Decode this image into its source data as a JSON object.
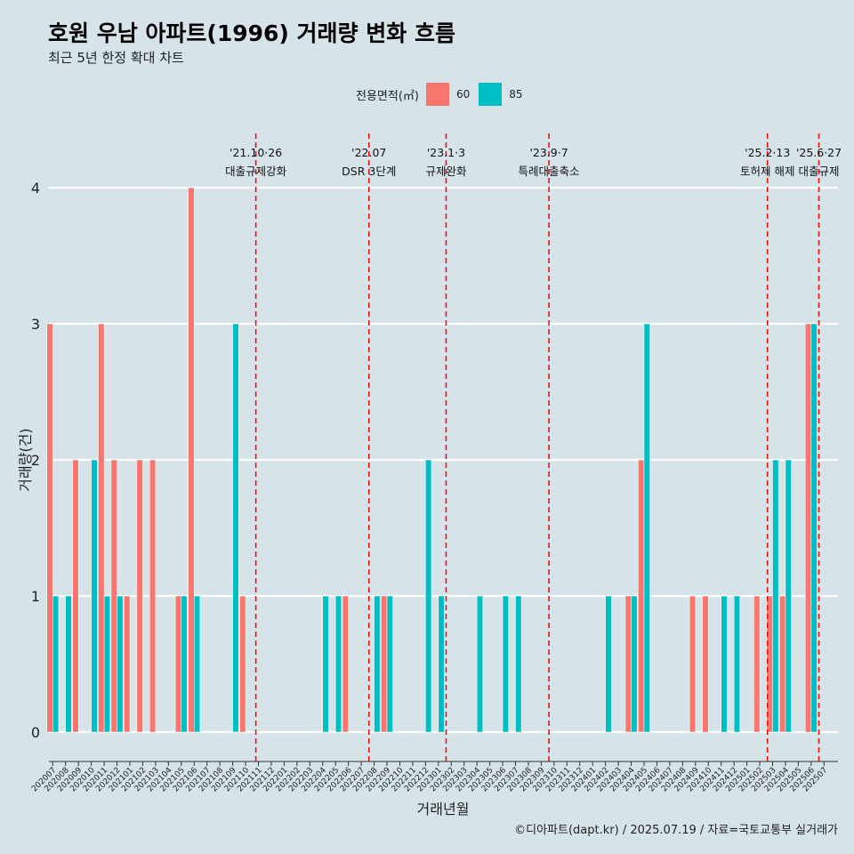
{
  "title": "호원 우남 아파트(1996) 거래량 변화 흐름",
  "subtitle": "최근 5년 한정 확대 차트",
  "caption": "©디아파트(dapt.kr) / 2025.07.19 / 자료=국토교통부 실거래가",
  "legend": {
    "title": "전용면적(㎡)",
    "items": [
      {
        "label": "60",
        "color": "#f8766d"
      },
      {
        "label": "85",
        "color": "#00bfc4"
      }
    ]
  },
  "chart_data": {
    "type": "bar",
    "xlabel": "거래년월",
    "ylabel": "거래량(건)",
    "ylim": [
      0,
      4
    ],
    "yticks": [
      0,
      1,
      2,
      3,
      4
    ],
    "grid": true,
    "legend_position": "top",
    "categories": [
      "202007",
      "202008",
      "202009",
      "202010",
      "202011",
      "202012",
      "202101",
      "202102",
      "202103",
      "202104",
      "202105",
      "202106",
      "202107",
      "202108",
      "202109",
      "202110",
      "202111",
      "202112",
      "202201",
      "202202",
      "202203",
      "202204",
      "202205",
      "202206",
      "202207",
      "202208",
      "202209",
      "202210",
      "202211",
      "202212",
      "202301",
      "202302",
      "202303",
      "202304",
      "202305",
      "202306",
      "202307",
      "202308",
      "202309",
      "202310",
      "202311",
      "202312",
      "202401",
      "202402",
      "202403",
      "202404",
      "202405",
      "202406",
      "202407",
      "202408",
      "202409",
      "202410",
      "202411",
      "202412",
      "202501",
      "202502",
      "202503",
      "202504",
      "202505",
      "202506",
      "202507"
    ],
    "series": [
      {
        "name": "60",
        "color": "#f8766d",
        "values": [
          3,
          0,
          2,
          0,
          3,
          2,
          1,
          2,
          2,
          0,
          1,
          4,
          0,
          0,
          0,
          1,
          0,
          0,
          0,
          0,
          0,
          0,
          0,
          1,
          0,
          0,
          1,
          0,
          0,
          0,
          0,
          0,
          0,
          0,
          0,
          0,
          0,
          0,
          0,
          0,
          0,
          0,
          0,
          0,
          0,
          1,
          2,
          0,
          0,
          0,
          1,
          1,
          0,
          0,
          0,
          1,
          1,
          1,
          0,
          3,
          0
        ]
      },
      {
        "name": "85",
        "color": "#00bfc4",
        "values": [
          1,
          1,
          0,
          2,
          1,
          1,
          0,
          0,
          0,
          0,
          1,
          1,
          0,
          0,
          3,
          0,
          0,
          0,
          0,
          0,
          0,
          1,
          1,
          0,
          0,
          1,
          1,
          0,
          0,
          2,
          1,
          0,
          0,
          1,
          0,
          1,
          1,
          0,
          0,
          0,
          0,
          0,
          0,
          1,
          0,
          1,
          3,
          0,
          0,
          0,
          0,
          0,
          1,
          1,
          0,
          0,
          2,
          2,
          0,
          3,
          0
        ]
      }
    ],
    "events": [
      {
        "date_label": "'21.10·26",
        "text": "대출규제강화",
        "month_index": 15.8
      },
      {
        "date_label": "'22.07",
        "text": "DSR 3단계",
        "month_index": 24.6
      },
      {
        "date_label": "'23.1·3",
        "text": "규제완화",
        "month_index": 30.6
      },
      {
        "date_label": "'23.9·7",
        "text": "특례대출축소",
        "month_index": 38.6
      },
      {
        "date_label": "'25.2·13",
        "text": "토허제 해제",
        "month_index": 55.6
      },
      {
        "date_label": "'25.6·27",
        "text": "대출규제",
        "month_index": 59.6
      }
    ]
  }
}
